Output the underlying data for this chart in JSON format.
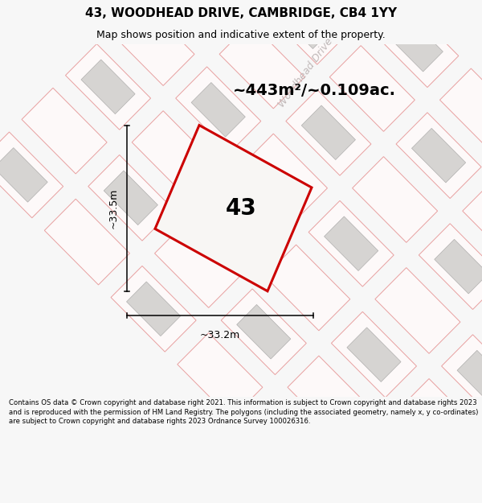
{
  "title": "43, WOODHEAD DRIVE, CAMBRIDGE, CB4 1YY",
  "subtitle": "Map shows position and indicative extent of the property.",
  "area_text": "~443m²/~0.109ac.",
  "number_label": "43",
  "dim_width": "~33.2m",
  "dim_height": "~33.5m",
  "road_label": "Woodhead Drive",
  "footer": "Contains OS data © Crown copyright and database right 2021. This information is subject to Crown copyright and database rights 2023 and is reproduced with the permission of HM Land Registry. The polygons (including the associated geometry, namely x, y co-ordinates) are subject to Crown copyright and database rights 2023 Ordnance Survey 100026316.",
  "bg_color": "#f7f7f7",
  "map_bg": "#ffffff",
  "plot_fill": "#f0eeec",
  "plot_edge": "#cc0000",
  "building_fill": "#d6d4d2",
  "building_edge": "#b0afae",
  "neighbor_edge": "#e8a0a0",
  "neighbor_fill": "#fdf9f9",
  "title_fontsize": 11,
  "subtitle_fontsize": 9,
  "area_fontsize": 14,
  "number_fontsize": 20,
  "dim_fontsize": 9,
  "road_label_color": "#c0b8b8",
  "road_label_fontsize": 9
}
